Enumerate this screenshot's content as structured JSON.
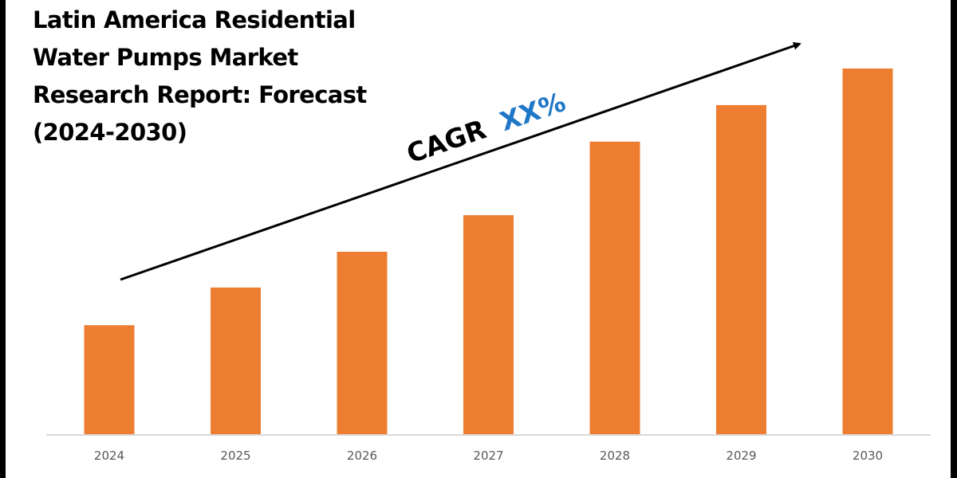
{
  "title": "Latin America Residential Water Pumps Market Research Report: Forecast (2024-2030)",
  "title_lines": [
    "Latin America Residential",
    "Water Pumps Market",
    "Research Report: Forecast",
    "(2024-2030)"
  ],
  "annotation": {
    "prefix": "CAGR",
    "value": "XX%",
    "prefix_color": "#000000",
    "value_color": "#1F77C8"
  },
  "colors": {
    "bar": "#ED7D31",
    "axis": "#D9D9D9",
    "tick_label": "#595959",
    "arrow": "#000000"
  },
  "chart_data": {
    "type": "bar",
    "title": "Latin America Residential Water Pumps Market Research Report: Forecast (2024-2030)",
    "categories": [
      "2024",
      "2025",
      "2026",
      "2027",
      "2028",
      "2029",
      "2030"
    ],
    "values": [
      29.8,
      40.1,
      49.9,
      59.9,
      80.0,
      90.0,
      100.0
    ],
    "value_note": "relative index (no value axis shown; 2030 = 100)",
    "xlabel": "",
    "ylabel": "",
    "ylim": [
      0,
      100
    ],
    "grid": false,
    "legend": "none",
    "annotations": [
      "CAGR XX%",
      "upward trend arrow"
    ]
  }
}
